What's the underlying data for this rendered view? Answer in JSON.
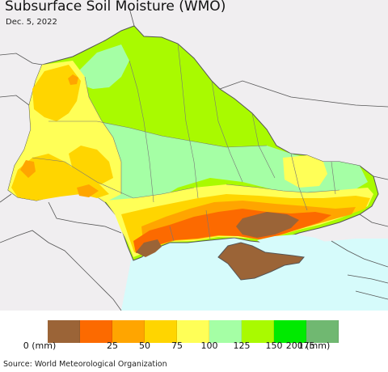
{
  "map": {
    "title": "Subsurface Soil Moisture (WMO)",
    "date": "Dec. 5, 2022",
    "colors": {
      "land_outside": "#f0eef0",
      "sea": "#d6fbfb",
      "border": "#555555",
      "internal_border": "#777777"
    }
  },
  "legend": {
    "colors": [
      "#9b6437",
      "#fc6a00",
      "#ffa500",
      "#ffd500",
      "#ffff57",
      "#a5ffa5",
      "#a9fa00",
      "#00ea00",
      "#70b871"
    ],
    "labels": [
      "0 (mm)",
      "25",
      "50",
      "75",
      "100",
      "125",
      "150",
      "175",
      "200 (mm)"
    ]
  },
  "footer": {
    "source": "Source: World Meteorological Organization"
  }
}
